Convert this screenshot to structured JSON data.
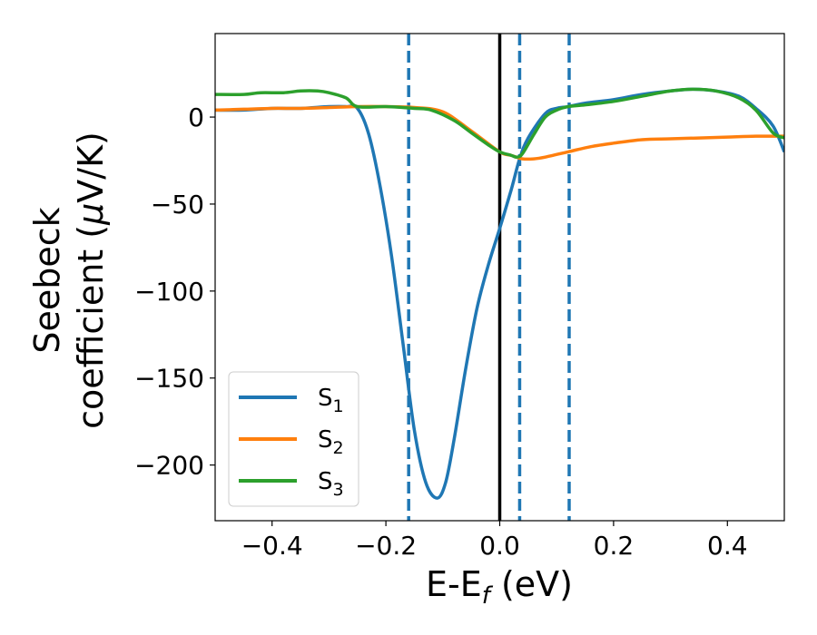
{
  "chart_data": {
    "type": "line",
    "xlabel": {
      "main": "E-E",
      "sub": "f",
      "unit": " (eV)"
    },
    "ylabel": {
      "line1": "Seebeck",
      "line2_main": "coefficient  (",
      "line2_mu": "μ",
      "line2_unit": "V/K)"
    },
    "xlim": [
      -0.5,
      0.5
    ],
    "ylim": [
      -232,
      48
    ],
    "xticks": [
      -0.4,
      -0.2,
      0.0,
      0.2,
      0.4
    ],
    "xtick_labels": [
      "−0.4",
      "−0.2",
      "0.0",
      "0.2",
      "0.4"
    ],
    "yticks": [
      0,
      -50,
      -100,
      -150,
      -200
    ],
    "ytick_labels": [
      "0",
      "−50",
      "−100",
      "−150",
      "−200"
    ],
    "grid": false,
    "legend_position": "bottom-left",
    "vertical_lines": [
      {
        "x": -0.16,
        "style": "dashed",
        "color": "#1f77b4"
      },
      {
        "x": 0.0,
        "style": "solid",
        "color": "#000000"
      },
      {
        "x": 0.035,
        "style": "dashed",
        "color": "#1f77b4"
      },
      {
        "x": 0.122,
        "style": "dashed",
        "color": "#1f77b4"
      }
    ],
    "series": [
      {
        "name": "S",
        "sub": "1",
        "color": "#1f77b4",
        "x": [
          -0.5,
          -0.45,
          -0.4,
          -0.35,
          -0.3,
          -0.27,
          -0.25,
          -0.23,
          -0.21,
          -0.19,
          -0.17,
          -0.15,
          -0.13,
          -0.11,
          -0.095,
          -0.08,
          -0.06,
          -0.04,
          -0.02,
          0.0,
          0.02,
          0.035,
          0.05,
          0.08,
          0.1,
          0.12,
          0.15,
          0.2,
          0.25,
          0.3,
          0.34,
          0.38,
          0.42,
          0.45,
          0.48,
          0.5
        ],
        "y": [
          4,
          4,
          5,
          5,
          6,
          6,
          5,
          -10,
          -40,
          -80,
          -130,
          -180,
          -210,
          -219,
          -210,
          -185,
          -145,
          -110,
          -85,
          -64,
          -42,
          -24,
          -12,
          2,
          5,
          6,
          8,
          10,
          13,
          15,
          16,
          15,
          12,
          5,
          -5,
          -20
        ]
      },
      {
        "name": "S",
        "sub": "2",
        "color": "#ff7f0e",
        "x": [
          -0.5,
          -0.45,
          -0.4,
          -0.35,
          -0.3,
          -0.25,
          -0.2,
          -0.15,
          -0.1,
          -0.05,
          0.0,
          0.02,
          0.04,
          0.06,
          0.08,
          0.12,
          0.16,
          0.2,
          0.25,
          0.3,
          0.35,
          0.4,
          0.45,
          0.5
        ],
        "y": [
          4,
          4.5,
          5,
          5,
          5.5,
          6,
          6,
          5.5,
          3,
          -8,
          -20,
          -22,
          -24,
          -24,
          -23,
          -20,
          -17,
          -15,
          -13,
          -12.5,
          -12,
          -11.5,
          -11,
          -11
        ]
      },
      {
        "name": "S",
        "sub": "3",
        "color": "#2ca02c",
        "x": [
          -0.5,
          -0.45,
          -0.42,
          -0.38,
          -0.35,
          -0.32,
          -0.3,
          -0.27,
          -0.25,
          -0.2,
          -0.15,
          -0.12,
          -0.08,
          -0.05,
          -0.02,
          0.0,
          0.02,
          0.03,
          0.04,
          0.06,
          0.08,
          0.1,
          0.12,
          0.15,
          0.2,
          0.25,
          0.3,
          0.34,
          0.38,
          0.42,
          0.45,
          0.48,
          0.5
        ],
        "y": [
          13,
          13,
          14,
          14,
          15,
          15,
          14,
          11,
          6,
          6,
          5,
          4,
          -2,
          -9,
          -16,
          -20,
          -22,
          -23,
          -21,
          -10,
          0,
          4,
          6,
          7,
          9,
          12,
          15,
          16,
          15,
          11,
          4,
          -9,
          -12
        ]
      }
    ]
  }
}
